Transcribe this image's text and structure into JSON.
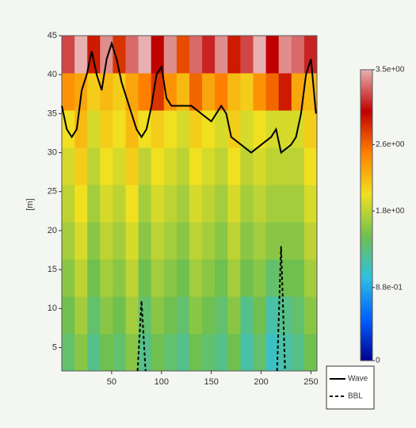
{
  "chart_data": {
    "type": "heatmap",
    "ylabel": "[m]",
    "xlim": [
      0,
      256
    ],
    "ylim": [
      2,
      45
    ],
    "xticks": [
      50,
      100,
      150,
      200,
      250
    ],
    "yticks": [
      5,
      10,
      15,
      20,
      25,
      30,
      35,
      40,
      45
    ],
    "zlim": [
      0,
      3.5
    ],
    "zticks": [
      {
        "value": 0,
        "label": "0"
      },
      {
        "value": 0.88,
        "label": "8.8e-01"
      },
      {
        "value": 1.8,
        "label": "1.8e+00"
      },
      {
        "value": 2.6,
        "label": "2.6e+00"
      },
      {
        "value": 3.5,
        "label": "3.5e+00"
      }
    ],
    "colorscale": [
      "#00008f",
      "#0060ff",
      "#30c0e0",
      "#70c050",
      "#f0e020",
      "#ff8000",
      "#c00000",
      "#e8b0b0"
    ],
    "z": [
      [
        1.4,
        1.6,
        1.3,
        1.5,
        1.4,
        1.6,
        1.3,
        1.5,
        1.4,
        1.3,
        1.5,
        1.4,
        1.3,
        1.5,
        1.2,
        1.4,
        1.1,
        1.2,
        1.3,
        1.5
      ],
      [
        1.5,
        1.7,
        1.4,
        1.6,
        1.5,
        1.7,
        1.4,
        1.6,
        1.5,
        1.4,
        1.6,
        1.5,
        1.4,
        1.6,
        1.3,
        1.5,
        1.2,
        1.3,
        1.4,
        1.6
      ],
      [
        1.6,
        1.8,
        1.5,
        1.7,
        1.6,
        1.8,
        1.5,
        1.7,
        1.6,
        1.5,
        1.7,
        1.6,
        1.5,
        1.7,
        1.5,
        1.6,
        1.4,
        1.5,
        1.5,
        1.7
      ],
      [
        1.7,
        1.9,
        1.6,
        1.8,
        1.7,
        1.9,
        1.6,
        1.8,
        1.7,
        1.6,
        1.8,
        1.7,
        1.6,
        1.8,
        1.6,
        1.7,
        1.6,
        1.6,
        1.6,
        1.8
      ],
      [
        1.8,
        2.0,
        1.7,
        1.9,
        1.8,
        2.0,
        1.7,
        1.9,
        1.8,
        1.7,
        1.9,
        1.8,
        1.7,
        1.9,
        1.7,
        1.8,
        1.7,
        1.7,
        1.7,
        1.9
      ],
      [
        1.9,
        2.1,
        1.8,
        2.0,
        1.9,
        2.1,
        1.8,
        2.0,
        1.9,
        1.8,
        2.0,
        1.9,
        1.8,
        2.0,
        1.8,
        1.9,
        1.8,
        1.8,
        1.8,
        2.0
      ],
      [
        2.0,
        2.2,
        1.9,
        2.1,
        2.0,
        2.2,
        2.0,
        2.1,
        2.0,
        1.9,
        2.1,
        2.0,
        1.9,
        2.1,
        1.9,
        2.0,
        1.9,
        1.9,
        1.9,
        2.1
      ],
      [
        2.4,
        2.3,
        2.1,
        2.2,
        2.1,
        2.3,
        2.5,
        2.8,
        2.4,
        2.2,
        2.6,
        2.3,
        2.5,
        2.2,
        2.1,
        2.4,
        2.6,
        2.9,
        2.3,
        2.2
      ],
      [
        3.2,
        3.5,
        2.9,
        3.4,
        2.8,
        3.3,
        3.5,
        3.0,
        3.4,
        2.7,
        3.3,
        3.1,
        3.4,
        2.9,
        3.2,
        3.5,
        3.0,
        3.4,
        3.3,
        3.1
      ]
    ],
    "series": [
      {
        "name": "Wave",
        "color": "#000000",
        "dash": false,
        "x": [
          0,
          5,
          10,
          15,
          20,
          25,
          30,
          35,
          40,
          45,
          50,
          55,
          60,
          65,
          70,
          75,
          80,
          85,
          90,
          95,
          100,
          105,
          110,
          120,
          130,
          140,
          150,
          160,
          165,
          170,
          180,
          190,
          200,
          210,
          215,
          220,
          230,
          235,
          240,
          245,
          250,
          255
        ],
        "values": [
          36,
          33,
          32,
          33,
          38,
          40,
          43,
          40,
          38,
          42,
          44,
          42,
          39,
          37,
          35,
          33,
          32,
          33,
          36,
          40,
          41,
          37,
          36,
          36,
          36,
          35,
          34,
          36,
          35,
          32,
          31,
          30,
          31,
          32,
          33,
          30,
          31,
          32,
          35,
          40,
          42,
          35
        ]
      },
      {
        "name": "BBL",
        "color": "#000000",
        "dash": true,
        "x": [
          76,
          80,
          84,
          200,
          216,
          220,
          224
        ],
        "values": [
          2,
          11,
          2,
          null,
          2,
          18,
          2
        ]
      }
    ]
  }
}
